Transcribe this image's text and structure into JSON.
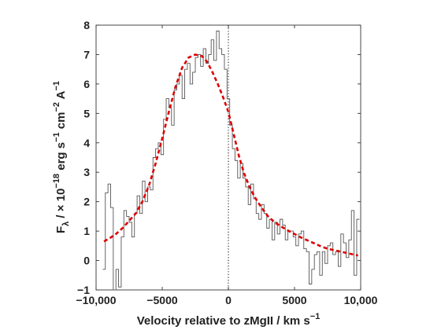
{
  "chart_data": {
    "type": "line",
    "title": "",
    "xlabel": {
      "main": "Velocity relative to zMgII / km s",
      "sup": "−1"
    },
    "ylabel": {
      "parts": [
        {
          "t": "F",
          "s": "n"
        },
        {
          "t": "λ",
          "s": "sub"
        },
        {
          "t": " / × 10",
          "s": "n"
        },
        {
          "t": "−18",
          "s": "sup"
        },
        {
          "t": " erg s",
          "s": "n"
        },
        {
          "t": "−1",
          "s": "sup"
        },
        {
          "t": " cm",
          "s": "n"
        },
        {
          "t": "−2",
          "s": "sup"
        },
        {
          "t": " A",
          "s": "n"
        },
        {
          "t": "−1",
          "s": "sup"
        }
      ]
    },
    "xlim": [
      -10000,
      10000
    ],
    "ylim": [
      -1,
      8
    ],
    "xticks": [
      -10000,
      -5000,
      0,
      5000,
      10000
    ],
    "xtick_labels": [
      "−10,000",
      "−5000",
      "0",
      "5000",
      "10,000"
    ],
    "yticks": [
      -1,
      0,
      1,
      2,
      3,
      4,
      5,
      6,
      7,
      8
    ],
    "ytick_labels": [
      "−1",
      "0",
      "1",
      "2",
      "3",
      "4",
      "5",
      "6",
      "7",
      "8"
    ],
    "reference_line": {
      "x": 0,
      "style": "dotted",
      "color": "#000000"
    },
    "grid": false,
    "legend": "none",
    "series": [
      {
        "style": "steps",
        "color": "#555555",
        "x": [
          -9400,
          -9200,
          -9000,
          -8800,
          -8600,
          -8400,
          -8200,
          -8000,
          -7800,
          -7600,
          -7400,
          -7200,
          -7000,
          -6800,
          -6600,
          -6400,
          -6200,
          -6000,
          -5800,
          -5600,
          -5400,
          -5200,
          -5000,
          -4800,
          -4600,
          -4400,
          -4200,
          -4000,
          -3800,
          -3600,
          -3400,
          -3200,
          -3000,
          -2800,
          -2600,
          -2400,
          -2200,
          -2000,
          -1800,
          -1600,
          -1400,
          -1200,
          -1000,
          -800,
          -600,
          -400,
          -200,
          0,
          200,
          400,
          600,
          800,
          1000,
          1200,
          1400,
          1600,
          1800,
          2000,
          2200,
          2400,
          2600,
          2800,
          3000,
          3200,
          3400,
          3600,
          3800,
          4000,
          4200,
          4400,
          4600,
          4800,
          5000,
          5200,
          5400,
          5600,
          5800,
          6000,
          6200,
          6400,
          6600,
          6800,
          7000,
          7200,
          7400,
          7600,
          7800,
          8000,
          8200,
          8400,
          8600,
          8800,
          9000,
          9200,
          9400,
          9600,
          9800
        ],
        "y": [
          -0.3,
          2.3,
          2.6,
          1.8,
          -1.0,
          -0.3,
          -0.9,
          0.8,
          1.7,
          1.5,
          1.3,
          0.8,
          1.6,
          2.2,
          1.6,
          2.7,
          2.0,
          2.5,
          2.4,
          3.5,
          3.8,
          4.0,
          3.6,
          4.8,
          5.5,
          5.2,
          4.6,
          5.8,
          6.0,
          6.3,
          5.5,
          6.5,
          6.7,
          6.0,
          6.4,
          6.9,
          7.0,
          6.6,
          7.2,
          6.7,
          7.0,
          7.5,
          6.8,
          7.8,
          7.2,
          7.0,
          6.5,
          5.5,
          4.6,
          3.8,
          3.4,
          2.8,
          3.3,
          2.8,
          2.5,
          1.9,
          2.6,
          2.1,
          1.6,
          1.4,
          1.9,
          1.6,
          1.1,
          1.4,
          0.7,
          1.3,
          0.9,
          1.4,
          1.2,
          0.7,
          1.0,
          1.0,
          0.8,
          0.5,
          0.9,
          1.0,
          0.4,
          0.3,
          -0.8,
          -0.3,
          0.2,
          0.3,
          -0.5,
          0.3,
          -0.1,
          0.5,
          0.6,
          0.2,
          0.3,
          -0.2,
          0.9,
          0.6,
          0.1,
          0.7,
          1.7,
          -0.5,
          1.4
        ]
      },
      {
        "style": "dashed",
        "color": "#dd0000",
        "x": [
          -9400,
          -9000,
          -8500,
          -8000,
          -7500,
          -7000,
          -6500,
          -6000,
          -5500,
          -5000,
          -4500,
          -4000,
          -3500,
          -3000,
          -2500,
          -2000,
          -1600,
          -1200,
          -800,
          -400,
          0,
          400,
          800,
          1200,
          1600,
          2000,
          2500,
          3000,
          3500,
          4000,
          4500,
          5000,
          5500,
          6000,
          6500,
          7000,
          7500,
          8000,
          8500,
          9000,
          9500,
          9800
        ],
        "y": [
          0.65,
          0.75,
          0.9,
          1.1,
          1.35,
          1.6,
          2.0,
          2.55,
          3.3,
          4.15,
          5.05,
          5.9,
          6.55,
          6.9,
          7.0,
          6.95,
          6.75,
          6.4,
          6.0,
          5.55,
          5.05,
          4.3,
          3.55,
          2.95,
          2.5,
          2.15,
          1.8,
          1.5,
          1.3,
          1.15,
          1.02,
          0.9,
          0.78,
          0.68,
          0.58,
          0.48,
          0.4,
          0.35,
          0.3,
          0.25,
          0.2,
          0.17
        ]
      }
    ]
  }
}
